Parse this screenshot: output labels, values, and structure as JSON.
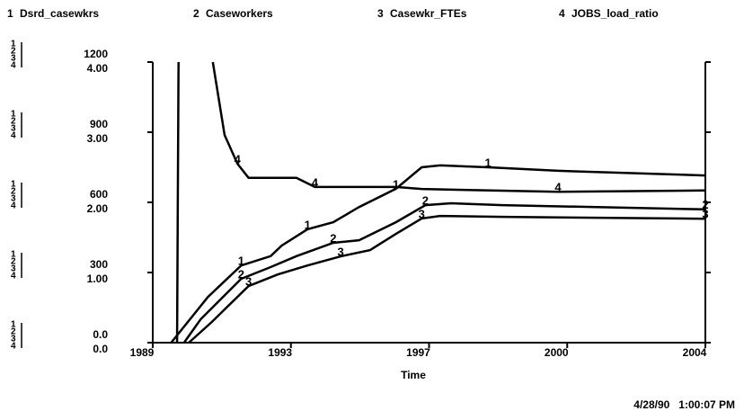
{
  "chart_data": {
    "type": "line",
    "x_label": "Time",
    "timestamp": "4/28/90   1:00:07 PM",
    "xlim": [
      1989,
      2004
    ],
    "xticks": [
      1989,
      {
        "value": 1992.75,
        "label": "1993"
      },
      {
        "value": 1996.5,
        "label": "1997"
      },
      {
        "value": 2000.25,
        "label": "2000"
      },
      2004
    ],
    "ylim": [
      0,
      1200
    ],
    "yticks": [
      {
        "value": 0,
        "label": "0.0"
      },
      300,
      600,
      900,
      1200
    ],
    "y2lim": [
      0,
      4
    ],
    "y2ticks": [
      {
        "value": 0,
        "label": "0.0"
      },
      {
        "value": 1,
        "label": "1.00"
      },
      {
        "value": 2,
        "label": "2.00"
      },
      {
        "value": 3,
        "label": "3.00"
      },
      {
        "value": 4,
        "label": "4.00"
      }
    ],
    "series": [
      {
        "label": "1",
        "name": "Dsrd_casewkrs",
        "color": "#000000",
        "x": [
          1989.5,
          1990.5,
          1991.4,
          1992.2,
          1992.5,
          1993.2,
          1993.9,
          1994.6,
          1995.6,
          1996.3,
          1996.8,
          1998.1,
          2000,
          2004
        ],
        "values": [
          0,
          196,
          330,
          370,
          415,
          485,
          515,
          580,
          658,
          750,
          758,
          750,
          735,
          715
        ]
      },
      {
        "label": "2",
        "name": "Caseworkers",
        "color": "#000000",
        "x": [
          1989.85,
          1990.3,
          1991.4,
          1992.2,
          1992.9,
          1993.9,
          1994.6,
          1995.6,
          1996.4,
          1997.1,
          1998.5,
          2004
        ],
        "values": [
          0,
          100,
          273,
          323,
          370,
          427,
          438,
          515,
          588,
          596,
          588,
          570
        ]
      },
      {
        "label": "3",
        "name": "Casewkr_FTEs",
        "color": "#000000",
        "x": [
          1989.98,
          1990.6,
          1991.6,
          1992.4,
          1993.2,
          1994.1,
          1994.9,
          1995.6,
          1996.3,
          1996.8,
          1998.5,
          2004
        ],
        "values": [
          0,
          88,
          242,
          292,
          330,
          369,
          396,
          465,
          531,
          542,
          538,
          530
        ]
      },
      {
        "label": "4",
        "name": "JOBS_load_ratio",
        "color": "#000000",
        "axis": "y2",
        "x": [
          1989.66,
          1989.7,
          1990,
          1990.63,
          1990.95,
          1991.3,
          1991.6,
          1992.9,
          1993.4,
          1995.6,
          1996.3,
          2000,
          2004
        ],
        "values": [
          0,
          4,
          null,
          4,
          2.96,
          2.55,
          2.35,
          2.35,
          2.22,
          2.22,
          2.19,
          2.15,
          2.17
        ]
      }
    ]
  }
}
